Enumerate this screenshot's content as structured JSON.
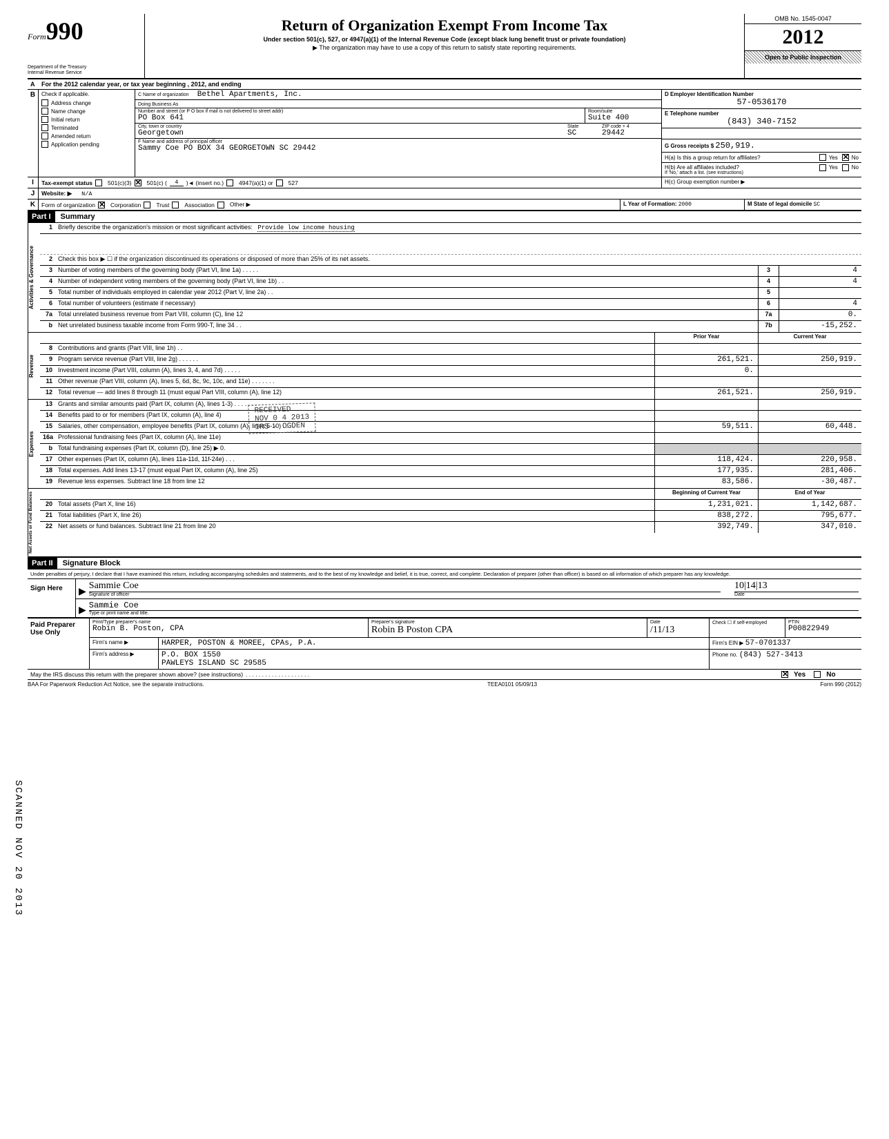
{
  "form": {
    "number": "990",
    "form_word": "Form",
    "dept": "Department of the Treasury\nInternal Revenue Service",
    "title": "Return of Organization Exempt From Income Tax",
    "sub1": "Under section 501(c), 527, or 4947(a)(1) of the Internal Revenue Code (except black lung benefit trust or private foundation)",
    "sub2": "▶ The organization may have to use a copy of this return to satisfy state reporting requirements.",
    "omb": "OMB No. 1545-0047",
    "year": "2012",
    "open": "Open to Public Inspection"
  },
  "row_a": "For the 2012 calendar year, or tax year beginning                              , 2012, and ending",
  "section_b": {
    "check_label": "Check if applicable.",
    "checks": [
      {
        "label": "Address change",
        "checked": false
      },
      {
        "label": "Name change",
        "checked": false
      },
      {
        "label": "Initial return",
        "checked": false
      },
      {
        "label": "Terminated",
        "checked": false
      },
      {
        "label": "Amended return",
        "checked": false
      },
      {
        "label": "Application pending",
        "checked": false
      }
    ],
    "c_label": "C Name of organization",
    "org_name": "Bethel Apartments, Inc.",
    "dba_label": "Doing Business As",
    "street_label": "Number and street (or P O  box if mail is not delivered to street addr)",
    "street": "PO Box 641",
    "room_label": "Room/suite",
    "room": "Suite 400",
    "city_label": "City, town or country",
    "city": "Georgetown",
    "state_label": "State",
    "state": "SC",
    "zip_label": "ZIP code + 4",
    "zip": "29442",
    "f_label": "F Name and address of principal officer",
    "officer": "Sammy Coe  PO BOX 34    GEORGETOWN  SC 29442"
  },
  "section_d": {
    "d_label": "D  Employer Identification Number",
    "ein": "57-0536170",
    "e_label": "E  Telephone number",
    "phone": "(843) 340-7152",
    "g_label": "G  Gross receipts $",
    "gross": "250,919.",
    "ha_label": "H(a) Is this a group return for affiliates?",
    "ha_yes": "Yes",
    "ha_no": "No",
    "hb_label": "H(b) Are all affiliates included?",
    "hb_note": "If 'No,' attach a list. (see instructions)",
    "hc_label": "H(c) Group exemption number ▶"
  },
  "line_i": {
    "label": "Tax-exempt status",
    "opts": [
      "501(c)(3)",
      "501(c) (",
      "4",
      ")◄ (insert no.)",
      "4947(a)(1) or",
      "527"
    ]
  },
  "line_j": {
    "label": "Website: ▶",
    "value": "N/A"
  },
  "line_k": {
    "label": "Form of organization",
    "opts": [
      "Corporation",
      "Trust",
      "Association",
      "Other ▶"
    ],
    "l_label": "L Year of Formation:",
    "l_val": "2000",
    "m_label": "M State of legal domicile",
    "m_val": "SC"
  },
  "part1": {
    "hdr": "Part I",
    "title": "Summary",
    "side_labels": [
      "Activities & Governance",
      "Revenue",
      "Expenses",
      "Net Assets or Fund Balances"
    ],
    "line1_label": "Briefly describe the organization's mission or most significant activities:",
    "line1_val": "Provide low income housing",
    "line2": "Check this box ▶ ☐ if the organization discontinued its operations or disposed of more than 25% of its net assets.",
    "rows_top": [
      {
        "n": "3",
        "desc": "Number of voting members of the governing body (Part VI, line 1a) . . . . .",
        "box": "3",
        "val": "4"
      },
      {
        "n": "4",
        "desc": "Number of independent voting members of the governing body (Part VI, line 1b) . .",
        "box": "4",
        "val": "4"
      },
      {
        "n": "5",
        "desc": "Total number of individuals employed in calendar year 2012 (Part V, line 2a) . .",
        "box": "5",
        "val": ""
      },
      {
        "n": "6",
        "desc": "Total number of volunteers (estimate if necessary)",
        "box": "6",
        "val": "4"
      },
      {
        "n": "7a",
        "desc": "Total unrelated business revenue from Part VIII, column (C), line 12",
        "box": "7a",
        "val": "0."
      },
      {
        "n": "b",
        "desc": "Net unrelated business taxable income from Form 990-T, line 34 . .",
        "box": "7b",
        "val": "-15,252."
      }
    ],
    "col_hdrs": {
      "prior": "Prior Year",
      "curr": "Current Year"
    },
    "rows_rev": [
      {
        "n": "8",
        "desc": "Contributions and grants (Part VIII, line 1h) . .",
        "prior": "",
        "curr": ""
      },
      {
        "n": "9",
        "desc": "Program service revenue (Part VIII, line 2g) . . . . . .",
        "prior": "261,521.",
        "curr": "250,919."
      },
      {
        "n": "10",
        "desc": "Investment income (Part VIII, column (A), lines 3, 4, and 7d) . . . . .",
        "prior": "0.",
        "curr": ""
      },
      {
        "n": "11",
        "desc": "Other revenue (Part VIII, column (A), lines 5, 6d, 8c, 9c, 10c, and 11e) . . . . . . .",
        "prior": "",
        "curr": ""
      },
      {
        "n": "12",
        "desc": "Total revenue — add lines 8 through 11 (must equal Part VIII, column (A), line 12)",
        "prior": "261,521.",
        "curr": "250,919."
      }
    ],
    "rows_exp": [
      {
        "n": "13",
        "desc": "Grants and similar amounts paid (Part IX, column (A), lines 1-3) . . . . . . .",
        "prior": "",
        "curr": ""
      },
      {
        "n": "14",
        "desc": "Benefits paid to or for members (Part IX, column (A), line 4)",
        "prior": "",
        "curr": ""
      },
      {
        "n": "15",
        "desc": "Salaries, other compensation, employee benefits (Part IX, column (A), lines 5-10) . . . .",
        "prior": "59,511.",
        "curr": "60,448."
      },
      {
        "n": "16a",
        "desc": "Professional fundraising fees (Part IX, column (A), line 11e)",
        "prior": "",
        "curr": ""
      },
      {
        "n": "b",
        "desc": "Total fundraising expenses (Part IX, column (D), line 25) ▶              0.",
        "prior": "shade",
        "curr": "shade"
      },
      {
        "n": "17",
        "desc": "Other expenses (Part IX, column (A), lines 11a-11d, 11f-24e) . . .",
        "prior": "118,424.",
        "curr": "220,958."
      },
      {
        "n": "18",
        "desc": "Total expenses. Add lines 13-17 (must equal Part IX, column (A), line 25)",
        "prior": "177,935.",
        "curr": "281,406."
      },
      {
        "n": "19",
        "desc": "Revenue less expenses. Subtract line 18 from line 12",
        "prior": "83,586.",
        "curr": "-30,487."
      }
    ],
    "col_hdrs2": {
      "prior": "Beginning of Current Year",
      "curr": "End of Year"
    },
    "rows_net": [
      {
        "n": "20",
        "desc": "Total assets (Part X, line 16)",
        "prior": "1,231,021.",
        "curr": "1,142,687."
      },
      {
        "n": "21",
        "desc": "Total liabilities (Part X, line 26)",
        "prior": "838,272.",
        "curr": "795,677."
      },
      {
        "n": "22",
        "desc": "Net assets or fund balances. Subtract line 21 from line 20",
        "prior": "392,749.",
        "curr": "347,010."
      }
    ]
  },
  "part2": {
    "hdr": "Part II",
    "title": "Signature Block",
    "declaration": "Under penalties of perjury, I declare that I have examined this return, including accompanying schedules and statements, and to the best of my knowledge and belief, it is true, correct, and complete. Declaration of preparer (other than officer) is based on all information of which preparer has any knowledge.",
    "sign_here": "Sign Here",
    "sig_officer_label": "Signature of officer",
    "date_label": "Date",
    "date_val": "10|14|13",
    "name_label": "Type or print name and title.",
    "name_val": "Sammie Coe",
    "paid": "Paid Preparer Use Only",
    "prep_name_label": "Print/Type preparer's name",
    "prep_name": "Robin B. Poston, CPA",
    "prep_sig_label": "Preparer's signature",
    "prep_date_label": "Date",
    "prep_date": "/11/13",
    "check_if": "Check ☐ if self-employed",
    "ptin_label": "PTIN",
    "ptin": "P00822949",
    "firm_name_label": "Firm's name ▶",
    "firm_name": "HARPER, POSTON & MOREE, CPAs, P.A.",
    "firm_addr_label": "Firm's address ▶",
    "firm_addr1": "P.O. BOX 1550",
    "firm_addr2": "PAWLEYS ISLAND                SC  29585",
    "firm_ein_label": "Firm's EIN ▶",
    "firm_ein": "57-0701337",
    "phone_label": "Phone no.",
    "phone": "(843) 527-3413",
    "discuss": "May the IRS discuss this return with the preparer shown above? (see instructions)",
    "discuss_yes": "Yes",
    "discuss_no": "No"
  },
  "footer": {
    "baa": "BAA  For Paperwork Reduction Act Notice, see the separate instructions.",
    "code": "TEEA0101  05/09/13",
    "form": "Form 990 (2012)"
  },
  "stamps": {
    "received": "RECEIVED\nNOV 0 4 2013\nIRS - OGDEN",
    "scanned": "SCANNED NOV 20 2013"
  }
}
